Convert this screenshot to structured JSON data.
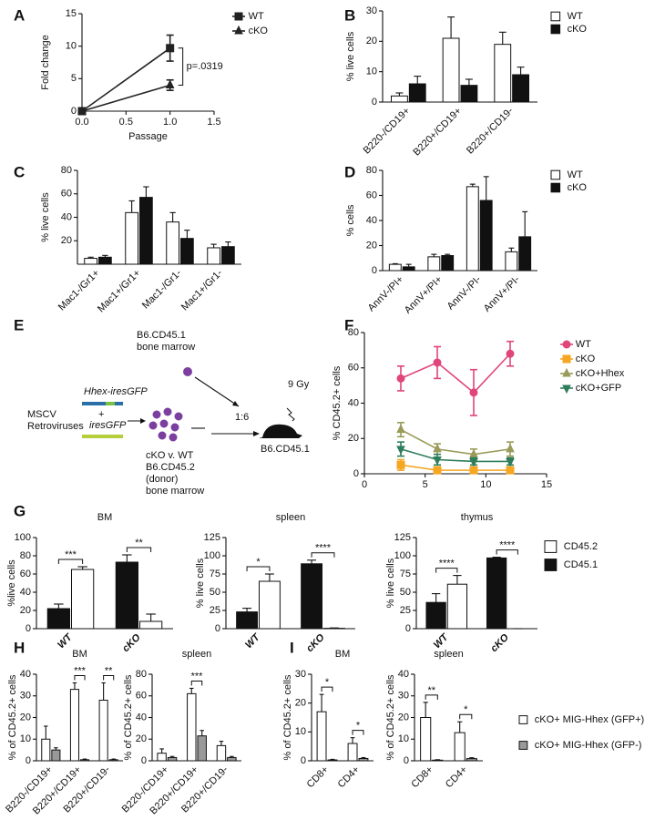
{
  "chart_data": [
    {
      "type": "line",
      "panel": "A",
      "ylabel": "Fold change",
      "xlabel": "Passage",
      "annotation": "p=.0319",
      "x": [
        0,
        1
      ],
      "xlim": [
        0,
        1.5
      ],
      "xticks": [
        {
          "value": 0,
          "label": "0.0"
        },
        {
          "value": 0.5,
          "label": "0.5"
        },
        {
          "value": 1,
          "label": "1.0"
        },
        {
          "value": 1.5,
          "label": "1.5"
        }
      ],
      "ylim": [
        0,
        15
      ],
      "yticks": [
        0,
        5,
        10,
        15
      ],
      "series": [
        {
          "name": "WT",
          "color": "#222222",
          "marker": "square",
          "values": [
            0,
            9.7
          ],
          "errors": [
            0,
            2
          ]
        },
        {
          "name": "cKO",
          "color": "#222222",
          "marker": "triangle",
          "values": [
            0,
            4
          ],
          "errors": [
            0,
            0.8
          ]
        }
      ]
    },
    {
      "type": "bar",
      "panel": "B",
      "ylabel": "% live cells",
      "categories": [
        "B220-/CD19+",
        "B220+/CD19+",
        "B220+/CD19-"
      ],
      "ylim": [
        0,
        30
      ],
      "yticks": [
        0,
        10,
        20,
        30
      ],
      "series": [
        {
          "name": "WT",
          "color": "#ffffff",
          "values": [
            2,
            21,
            19
          ],
          "errors": [
            1,
            7,
            4
          ]
        },
        {
          "name": "cKO",
          "color": "#111111",
          "values": [
            6,
            5.5,
            9
          ],
          "errors": [
            2.5,
            2,
            2.5
          ]
        }
      ]
    },
    {
      "type": "bar",
      "panel": "C",
      "ylabel": "% live cells",
      "categories": [
        "Mac1-/Gr1+",
        "Mac1+/Gr1+",
        "Mac1-/Gr1-",
        "Mac1+/Gr1-"
      ],
      "ylim": [
        0,
        80
      ],
      "yticks": [
        20,
        40,
        60,
        80
      ],
      "series": [
        {
          "color": "#ffffff",
          "values": [
            5,
            44,
            36,
            14
          ],
          "errors": [
            1,
            10,
            8,
            3
          ]
        },
        {
          "color": "#111111",
          "values": [
            6,
            57,
            22,
            15
          ],
          "errors": [
            1.5,
            9,
            7,
            4
          ]
        }
      ]
    },
    {
      "type": "bar",
      "panel": "D",
      "ylabel": "% cells",
      "categories": [
        "AnnV-/PI+",
        "AnnV+/PI+",
        "AnnV-/PI-",
        "AnnV+/PI-"
      ],
      "ylim": [
        0,
        80
      ],
      "yticks": [
        0,
        20,
        40,
        60,
        80
      ],
      "series": [
        {
          "name": "WT",
          "color": "#ffffff",
          "values": [
            5,
            11,
            67,
            15
          ],
          "errors": [
            0.5,
            2,
            2,
            3
          ]
        },
        {
          "name": "cKO",
          "color": "#111111",
          "values": [
            3,
            12,
            56,
            27
          ],
          "errors": [
            2,
            1,
            19,
            20
          ]
        }
      ]
    },
    {
      "type": "line",
      "panel": "F",
      "ylabel": "% CD45.2+ cells",
      "x": [
        3,
        6,
        9,
        12
      ],
      "xlim": [
        0,
        15
      ],
      "xticks": [
        0,
        5,
        10,
        15
      ],
      "ylim": [
        0,
        80
      ],
      "yticks": [
        0,
        20,
        40,
        60,
        80
      ],
      "series": [
        {
          "name": "WT",
          "color": "#e0457b",
          "marker": "circle",
          "values": [
            54,
            63,
            46,
            68
          ],
          "errors": [
            7,
            9,
            13,
            7
          ]
        },
        {
          "name": "cKO",
          "color": "#f5a623",
          "marker": "square",
          "values": [
            5,
            2,
            2,
            2
          ],
          "errors": [
            3,
            1,
            1,
            1
          ]
        },
        {
          "name": "cKO+Hhex",
          "color": "#9a9a5a",
          "marker": "triangle",
          "values": [
            25,
            14,
            11,
            14
          ],
          "errors": [
            4,
            3,
            3,
            4
          ]
        },
        {
          "name": "cKO+GFP",
          "color": "#2e7d5b",
          "marker": "triangle-down",
          "values": [
            14,
            8,
            7,
            7
          ],
          "errors": [
            4,
            3,
            2,
            2
          ]
        }
      ]
    },
    {
      "type": "bar",
      "panel": "G",
      "title": "BM",
      "ylabel": "%live cells",
      "categories": [
        "WT",
        "cKO"
      ],
      "ylim": [
        0,
        100
      ],
      "yticks": [
        0,
        20,
        40,
        60,
        80,
        100
      ],
      "significance": [
        "***",
        "**"
      ],
      "series": [
        {
          "color": "#ffffff",
          "values": [
            65,
            8
          ],
          "errors": [
            3,
            8
          ]
        },
        {
          "color": "#111111",
          "values": [
            22,
            73
          ],
          "errors": [
            5,
            8
          ]
        }
      ]
    },
    {
      "type": "bar",
      "title": "spleen",
      "ylabel": "% live cells",
      "categories": [
        "WT",
        "cKO"
      ],
      "ylim": [
        0,
        125
      ],
      "yticks": [
        0,
        25,
        50,
        75,
        100,
        125
      ],
      "significance": [
        "*",
        "****"
      ],
      "series": [
        {
          "color": "#ffffff",
          "values": [
            65,
            0.5
          ],
          "errors": [
            10,
            0.5
          ]
        },
        {
          "color": "#111111",
          "values": [
            23,
            89
          ],
          "errors": [
            5,
            5
          ]
        }
      ]
    },
    {
      "type": "bar",
      "title": "thymus",
      "ylabel": "% live cells",
      "categories": [
        "WT",
        "cKO"
      ],
      "ylim": [
        0,
        125
      ],
      "yticks": [
        0,
        25,
        50,
        75,
        100,
        125
      ],
      "significance": [
        "****",
        "****"
      ],
      "series": [
        {
          "name": "CD45.2",
          "color": "#ffffff",
          "values": [
            61,
            0
          ],
          "errors": [
            12,
            0
          ]
        },
        {
          "name": "CD45.1",
          "color": "#111111",
          "values": [
            36,
            97
          ],
          "errors": [
            12,
            1
          ]
        }
      ]
    },
    {
      "type": "bar",
      "panel": "H",
      "title": "BM",
      "ylabel": "% of CD45.2+ cells",
      "categories": [
        "B220-/CD19+",
        "B220+/CD19+",
        "B220+/CD19-"
      ],
      "ylim": [
        0,
        40
      ],
      "yticks": [
        0,
        10,
        20,
        30,
        40
      ],
      "significance": [
        null,
        "***",
        "**"
      ],
      "series": [
        {
          "color": "#ffffff",
          "values": [
            10,
            33,
            28
          ],
          "errors": [
            6,
            3,
            8
          ]
        },
        {
          "color": "#999999",
          "values": [
            5,
            0.5,
            0.5
          ],
          "errors": [
            1,
            0.3,
            0.3
          ]
        }
      ]
    },
    {
      "type": "bar",
      "title": "spleen",
      "ylabel": "% of CD45.2+ cells",
      "categories": [
        "B220-/CD19+",
        "B220+/CD19+",
        "B220+/CD19-"
      ],
      "ylim": [
        0,
        80
      ],
      "yticks": [
        0,
        20,
        40,
        60,
        80
      ],
      "significance": [
        null,
        "***",
        null
      ],
      "series": [
        {
          "color": "#ffffff",
          "values": [
            7,
            62,
            14
          ],
          "errors": [
            4,
            5,
            4
          ]
        },
        {
          "color": "#999999",
          "values": [
            3,
            23,
            3
          ],
          "errors": [
            1,
            5,
            1
          ]
        }
      ]
    },
    {
      "type": "bar",
      "panel": "I",
      "title": "BM",
      "ylabel": "% of CD45.2+ cells",
      "categories": [
        "CD8+",
        "CD4+"
      ],
      "ylim": [
        0,
        30
      ],
      "yticks": [
        0,
        10,
        20,
        30
      ],
      "significance": [
        "*",
        "*"
      ],
      "series": [
        {
          "color": "#ffffff",
          "values": [
            17,
            6
          ],
          "errors": [
            6,
            2
          ]
        },
        {
          "color": "#999999",
          "values": [
            0.3,
            0.8
          ],
          "errors": [
            0.2,
            0.3
          ]
        }
      ]
    },
    {
      "type": "bar",
      "title": "spleen",
      "ylabel": "% of CD45.2+ cells",
      "categories": [
        "CD8+",
        "CD4+"
      ],
      "ylim": [
        0,
        40
      ],
      "yticks": [
        0,
        10,
        20,
        30,
        40
      ],
      "significance": [
        "**",
        "*"
      ],
      "series": [
        {
          "name": "cKO+ MIG-Hhex (GFP+)",
          "color": "#ffffff",
          "values": [
            20,
            13
          ],
          "errors": [
            7,
            5
          ]
        },
        {
          "name": "cKO+ MIG-Hhex (GFP-)",
          "color": "#999999",
          "values": [
            0.3,
            1
          ],
          "errors": [
            0.2,
            0.4
          ]
        }
      ]
    }
  ],
  "diagram": {
    "panel": "E",
    "donor_label": [
      "B6.CD45.1",
      "bone marrow"
    ],
    "vector1": "Hhex-iresGFP",
    "plus": "+",
    "vector2": "iresGFP",
    "retro": [
      "MSCV",
      "Retroviruses"
    ],
    "cells": [
      "cKO v. WT",
      "B6.CD45.2",
      "(donor)",
      "bone marrow"
    ],
    "ratio": "1:6",
    "dose": "9 Gy",
    "recipient": "B6.CD45.1"
  }
}
